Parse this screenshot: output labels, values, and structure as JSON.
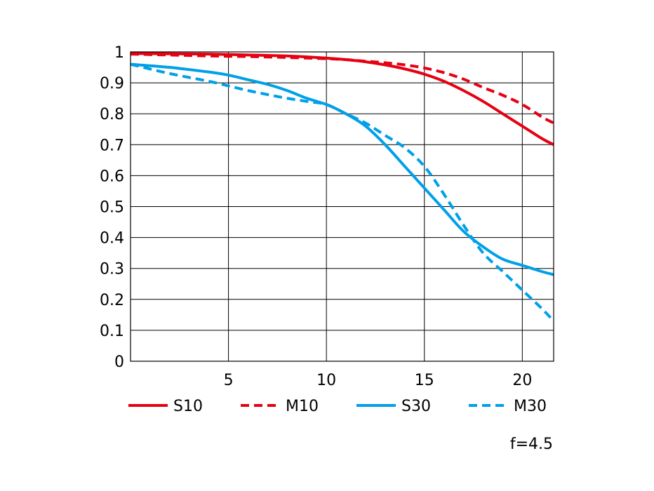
{
  "chart_data": {
    "type": "line",
    "title": "",
    "xlabel": "",
    "ylabel": "",
    "xlim": [
      0,
      21.6
    ],
    "ylim": [
      0,
      1
    ],
    "grid": true,
    "legend_position": "bottom",
    "x_ticks": [
      {
        "value": 5,
        "label": "5"
      },
      {
        "value": 10,
        "label": "10"
      },
      {
        "value": 15,
        "label": "15"
      },
      {
        "value": 20,
        "label": "20"
      }
    ],
    "y_ticks": [
      {
        "value": 0,
        "label": "0"
      },
      {
        "value": 0.1,
        "label": "0.1"
      },
      {
        "value": 0.2,
        "label": "0.2"
      },
      {
        "value": 0.3,
        "label": "0.3"
      },
      {
        "value": 0.4,
        "label": "0.4"
      },
      {
        "value": 0.5,
        "label": "0.5"
      },
      {
        "value": 0.6,
        "label": "0.6"
      },
      {
        "value": 0.7,
        "label": "0.7"
      },
      {
        "value": 0.8,
        "label": "0.8"
      },
      {
        "value": 0.9,
        "label": "0.9"
      },
      {
        "value": 1,
        "label": "1"
      }
    ],
    "series": [
      {
        "name": "S10",
        "color": "#e60012",
        "dash": false,
        "x": [
          0,
          2,
          4,
          6,
          8,
          10,
          11,
          12,
          13,
          14,
          15,
          16,
          17,
          18,
          19,
          20,
          21,
          21.6
        ],
        "values": [
          0.995,
          0.994,
          0.993,
          0.99,
          0.987,
          0.98,
          0.975,
          0.968,
          0.958,
          0.945,
          0.928,
          0.905,
          0.875,
          0.84,
          0.8,
          0.76,
          0.72,
          0.7
        ]
      },
      {
        "name": "M10",
        "color": "#e60012",
        "dash": true,
        "x": [
          0,
          2,
          4,
          6,
          8,
          10,
          11,
          12,
          13,
          14,
          15,
          16,
          17,
          18,
          19,
          20,
          21,
          21.6
        ],
        "values": [
          0.993,
          0.99,
          0.987,
          0.985,
          0.982,
          0.978,
          0.975,
          0.97,
          0.965,
          0.958,
          0.948,
          0.933,
          0.912,
          0.885,
          0.86,
          0.83,
          0.79,
          0.77
        ]
      },
      {
        "name": "S30",
        "color": "#00a0e9",
        "dash": false,
        "x": [
          0,
          2,
          4,
          5,
          6,
          7,
          8,
          9,
          10,
          11,
          12,
          13,
          14,
          15,
          16,
          17,
          18,
          19,
          20,
          21,
          21.6
        ],
        "values": [
          0.96,
          0.95,
          0.935,
          0.925,
          0.91,
          0.895,
          0.875,
          0.85,
          0.83,
          0.8,
          0.76,
          0.7,
          0.63,
          0.56,
          0.49,
          0.42,
          0.37,
          0.33,
          0.31,
          0.29,
          0.28
        ]
      },
      {
        "name": "M30",
        "color": "#00a0e9",
        "dash": true,
        "x": [
          0,
          2,
          4,
          5,
          6,
          7,
          8,
          9,
          10,
          11,
          12,
          13,
          14,
          15,
          16,
          17,
          18,
          19,
          20,
          21,
          21.6
        ],
        "values": [
          0.96,
          0.93,
          0.905,
          0.89,
          0.875,
          0.862,
          0.85,
          0.84,
          0.83,
          0.8,
          0.77,
          0.73,
          0.69,
          0.63,
          0.54,
          0.44,
          0.35,
          0.29,
          0.23,
          0.17,
          0.13
        ]
      }
    ],
    "annotation": "f=4.5"
  }
}
